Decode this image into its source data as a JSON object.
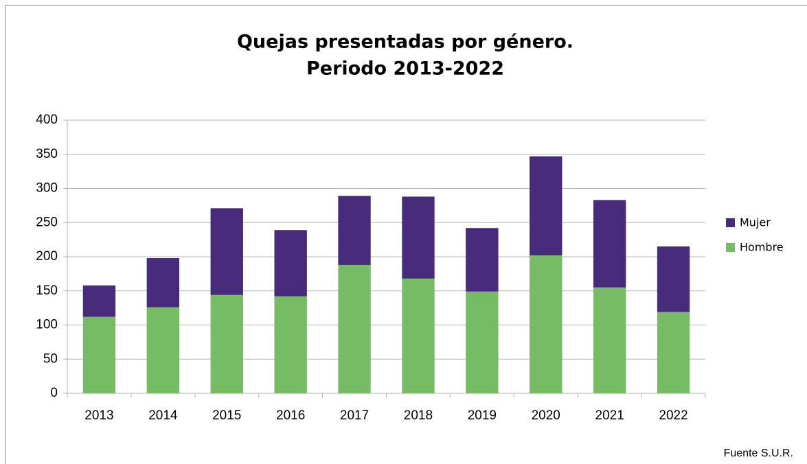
{
  "chart_data": {
    "type": "stacked_bar",
    "title": [
      "Quejas presentadas por género.",
      "Periodo 2013-2022"
    ],
    "categories": [
      "2013",
      "2014",
      "2015",
      "2016",
      "2017",
      "2018",
      "2019",
      "2020",
      "2021",
      "2022"
    ],
    "series": [
      {
        "name": "Hombre",
        "color": "#77bc65",
        "values": [
          112,
          126,
          144,
          142,
          188,
          168,
          149,
          202,
          155,
          119
        ]
      },
      {
        "name": "Mujer",
        "color": "#472a7a",
        "values": [
          46,
          72,
          127,
          97,
          101,
          120,
          93,
          145,
          128,
          96
        ]
      }
    ],
    "ylim": [
      0,
      400
    ],
    "yticks": [
      0,
      50,
      100,
      150,
      200,
      250,
      300,
      350,
      400
    ],
    "grid": true,
    "legend": "right",
    "source": "Fuente S.U.R."
  }
}
